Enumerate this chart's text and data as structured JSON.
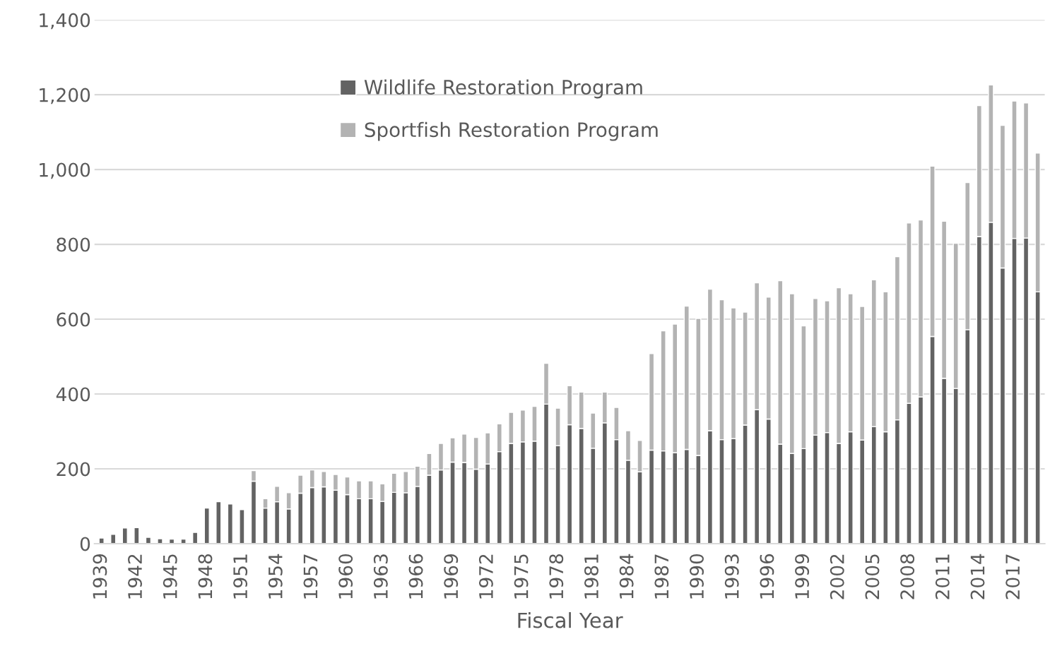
{
  "chart_data": {
    "type": "bar",
    "stacked": true,
    "xlabel": "Fiscal Year",
    "categories": [
      "1939",
      null,
      null,
      "1942",
      null,
      null,
      "1945",
      null,
      null,
      "1948",
      null,
      null,
      "1951",
      null,
      null,
      "1954",
      null,
      null,
      "1957",
      null,
      null,
      "1960",
      null,
      null,
      "1963",
      null,
      null,
      "1966",
      null,
      null,
      "1969",
      null,
      null,
      "1972",
      null,
      null,
      "1975",
      null,
      null,
      "1978",
      null,
      null,
      "1981",
      null,
      null,
      "1984",
      null,
      null,
      "1987",
      null,
      null,
      "1990",
      null,
      null,
      "1993",
      null,
      null,
      "1996",
      null,
      null,
      "1999",
      null,
      null,
      "2002",
      null,
      null,
      "2005",
      null,
      null,
      "2008",
      null,
      null,
      "2011",
      null,
      null,
      "2014",
      null,
      null,
      "2017",
      null,
      null
    ],
    "series": [
      {
        "name": "Wildlife Restoration Program",
        "color": "#636363",
        "values": [
          15,
          25,
          42,
          43,
          17,
          13,
          12,
          12,
          30,
          95,
          112,
          106,
          91,
          167,
          95,
          112,
          93,
          135,
          150,
          152,
          143,
          131,
          120,
          120,
          113,
          137,
          136,
          153,
          183,
          197,
          218,
          217,
          199,
          213,
          246,
          268,
          272,
          274,
          373,
          262,
          318,
          308,
          255,
          323,
          278,
          223,
          192,
          250,
          248,
          243,
          252,
          236,
          302,
          278,
          281,
          317,
          358,
          333,
          266,
          241,
          254,
          290,
          297,
          268,
          299,
          277,
          313,
          299,
          331,
          375,
          392,
          554,
          442,
          415,
          572,
          821,
          859,
          737,
          816,
          817,
          673
        ]
      },
      {
        "name": "Sportfish Restoration Program",
        "color": "#b3b3b3",
        "values": [
          null,
          null,
          null,
          null,
          null,
          null,
          null,
          null,
          null,
          null,
          null,
          null,
          null,
          28,
          25,
          41,
          43,
          48,
          47,
          41,
          42,
          47,
          48,
          48,
          47,
          51,
          57,
          54,
          58,
          71,
          65,
          76,
          85,
          83,
          74,
          83,
          85,
          93,
          109,
          100,
          104,
          97,
          94,
          82,
          86,
          79,
          84,
          258,
          321,
          344,
          383,
          366,
          378,
          374,
          349,
          302,
          339,
          326,
          437,
          427,
          328,
          365,
          352,
          416,
          369,
          357,
          392,
          374,
          436,
          482,
          473,
          455,
          420,
          388,
          393,
          350,
          367,
          381,
          367,
          361,
          371
        ]
      }
    ],
    "ylim": [
      0,
      1400
    ],
    "yticks": [
      {
        "value": 0,
        "label": "0"
      },
      {
        "value": 200,
        "label": "200"
      },
      {
        "value": 400,
        "label": "400"
      },
      {
        "value": 600,
        "label": "600"
      },
      {
        "value": 800,
        "label": "800"
      },
      {
        "value": 1000,
        "label": "1,000"
      },
      {
        "value": 1200,
        "label": "1,200"
      },
      {
        "value": 1400,
        "label": "1,400"
      }
    ],
    "grid": "y",
    "legend": "top left"
  }
}
